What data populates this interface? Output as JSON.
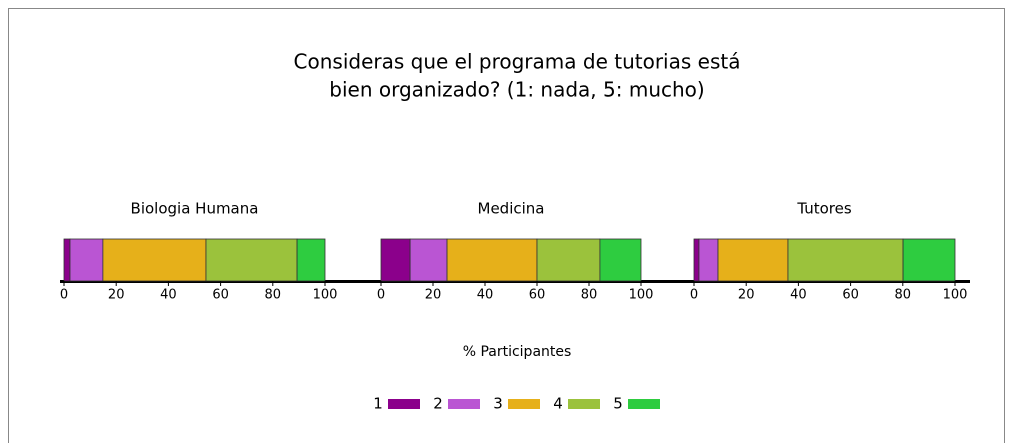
{
  "title": [
    "Consideras que el programa de tutorias está",
    "bien organizado? (1: nada, 5: mucho)"
  ],
  "xlabel": "% Participantes",
  "chart_data": [
    {
      "type": "bar",
      "orientation": "horizontal",
      "stacked": true,
      "title": "Biologia Humana",
      "series": [
        {
          "name": "1",
          "color": "#8b008b",
          "values": [
            2.3
          ]
        },
        {
          "name": "2",
          "color": "#ba55d3",
          "values": [
            12.6
          ]
        },
        {
          "name": "3",
          "color": "#e6b01a",
          "values": [
            39.5
          ]
        },
        {
          "name": "4",
          "color": "#9bc23c",
          "values": [
            34.9
          ]
        },
        {
          "name": "5",
          "color": "#2ecc40",
          "values": [
            10.7
          ]
        }
      ],
      "xlim": [
        0,
        100
      ],
      "xticks": [
        0,
        20,
        40,
        60,
        80,
        100
      ]
    },
    {
      "type": "bar",
      "orientation": "horizontal",
      "stacked": true,
      "title": "Medicina",
      "series": [
        {
          "name": "1",
          "color": "#8b008b",
          "values": [
            11.2
          ]
        },
        {
          "name": "2",
          "color": "#ba55d3",
          "values": [
            14.2
          ]
        },
        {
          "name": "3",
          "color": "#e6b01a",
          "values": [
            34.6
          ]
        },
        {
          "name": "4",
          "color": "#9bc23c",
          "values": [
            24.2
          ]
        },
        {
          "name": "5",
          "color": "#2ecc40",
          "values": [
            15.8
          ]
        }
      ],
      "xlim": [
        0,
        100
      ],
      "xticks": [
        0,
        20,
        40,
        60,
        80,
        100
      ]
    },
    {
      "type": "bar",
      "orientation": "horizontal",
      "stacked": true,
      "title": "Tutores",
      "series": [
        {
          "name": "1",
          "color": "#8b008b",
          "values": [
            1.9
          ]
        },
        {
          "name": "2",
          "color": "#ba55d3",
          "values": [
            7.3
          ]
        },
        {
          "name": "3",
          "color": "#e6b01a",
          "values": [
            26.8
          ]
        },
        {
          "name": "4",
          "color": "#9bc23c",
          "values": [
            44.1
          ]
        },
        {
          "name": "5",
          "color": "#2ecc40",
          "values": [
            19.9
          ]
        }
      ],
      "xlim": [
        0,
        100
      ],
      "xticks": [
        0,
        20,
        40,
        60,
        80,
        100
      ]
    }
  ]
}
